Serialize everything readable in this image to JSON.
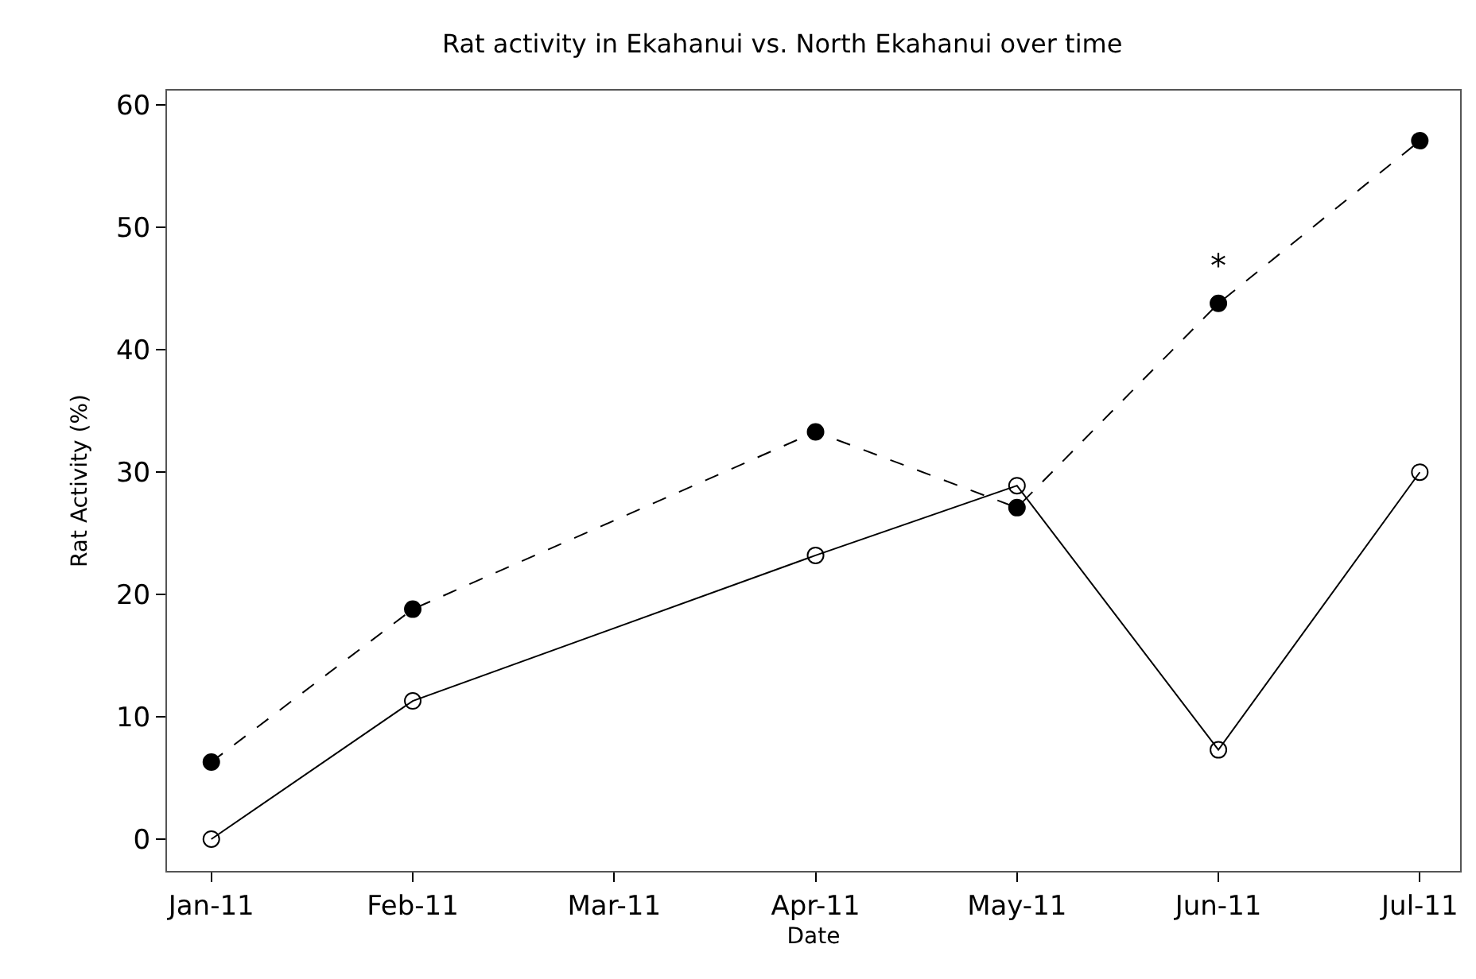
{
  "chart_data": {
    "type": "line",
    "title": "Rat activity in Ekahanui vs. North Ekahanui over time",
    "xlabel": "Date",
    "ylabel": "Rat Activity (%)",
    "categories": [
      "Jan-11",
      "Feb-11",
      "Mar-11",
      "Apr-11",
      "May-11",
      "Jun-11",
      "Jul-11"
    ],
    "series": [
      {
        "color": "#000000",
        "line_style": "dashed",
        "marker": "circle",
        "values": [
          6.3,
          18.8,
          null,
          33.3,
          27.1,
          43.8,
          57.1
        ]
      },
      {
        "color": "#000000",
        "line_style": "solid",
        "marker": "circle-open",
        "values": [
          0,
          11.3,
          null,
          23.2,
          28.9,
          7.3,
          30.0
        ]
      }
    ],
    "annotations": [
      {
        "text": "*",
        "x": "Jun-11",
        "y": 43.8
      }
    ],
    "ylim": [
      -2.6,
      61.2
    ],
    "yticks": [
      0,
      10,
      20,
      30,
      40,
      50,
      60
    ],
    "grid": false
  }
}
